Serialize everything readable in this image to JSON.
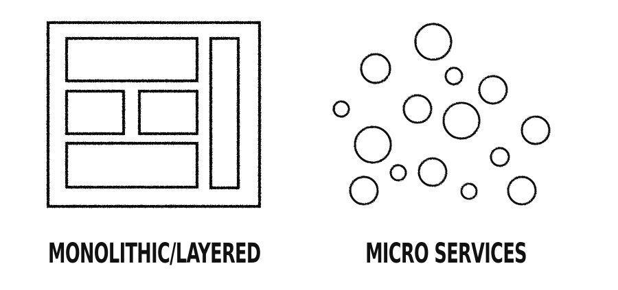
{
  "diagrams": {
    "monolithic": {
      "caption": "MONOLITHIC/LAYERED"
    },
    "microservices": {
      "caption": "MICRO SERVICES"
    }
  },
  "style": {
    "stroke_color": "#111111",
    "background": "#ffffff"
  }
}
